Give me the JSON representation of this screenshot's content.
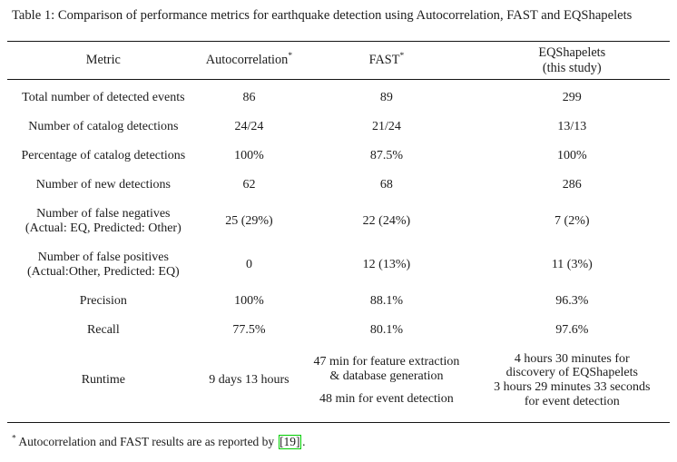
{
  "caption": "Table 1: Comparison of performance metrics for earthquake detection using Autocorrelation, FAST and EQShapelets",
  "table": {
    "header": {
      "metric": "Metric",
      "autocorrelation": "Autocorrelation",
      "autocorrelation_sup": "*",
      "fast": "FAST",
      "fast_sup": "*",
      "eqshapelets_line1": "EQShapelets",
      "eqshapelets_line2": "(this study)"
    },
    "rows": [
      {
        "cells": [
          [
            "Total number of detected events"
          ],
          [
            "86"
          ],
          [
            "89"
          ],
          [
            "299"
          ]
        ]
      },
      {
        "cells": [
          [
            "Number of catalog detections"
          ],
          [
            "24/24"
          ],
          [
            "21/24"
          ],
          [
            "13/13"
          ]
        ]
      },
      {
        "cells": [
          [
            "Percentage of catalog detections"
          ],
          [
            "100%"
          ],
          [
            "87.5%"
          ],
          [
            "100%"
          ]
        ]
      },
      {
        "cells": [
          [
            "Number of new detections"
          ],
          [
            "62"
          ],
          [
            "68"
          ],
          [
            "286"
          ]
        ]
      },
      {
        "cells": [
          [
            "Number of false negatives",
            "(Actual: EQ, Predicted: Other)"
          ],
          [
            "25 (29%)"
          ],
          [
            "22 (24%)"
          ],
          [
            "7 (2%)"
          ]
        ]
      },
      {
        "cells": [
          [
            "Number of false positives",
            "(Actual:Other, Predicted: EQ)"
          ],
          [
            "0"
          ],
          [
            "12 (13%)"
          ],
          [
            "11 (3%)"
          ]
        ]
      },
      {
        "cells": [
          [
            "Precision"
          ],
          [
            "100%"
          ],
          [
            "88.1%"
          ],
          [
            "96.3%"
          ]
        ]
      },
      {
        "cells": [
          [
            "Recall"
          ],
          [
            "77.5%"
          ],
          [
            "80.1%"
          ],
          [
            "97.6%"
          ]
        ]
      },
      {
        "cells": [
          [
            "Runtime"
          ],
          [
            "9 days 13 hours"
          ],
          [
            "47 min for feature extraction",
            "& database generation",
            "",
            "48 min for event detection"
          ],
          [
            "4 hours 30 minutes for",
            "discovery of EQShapelets",
            "3 hours 29 minutes 33 seconds",
            "for event detection"
          ]
        ]
      }
    ]
  },
  "footnote": {
    "marker": "*",
    "text_before": " Autocorrelation and FAST results are as reported by ",
    "citation": "[19]",
    "text_after": "."
  },
  "colors": {
    "citation_green": "#00cc00",
    "text": "#1c1c1c",
    "rule": "#151515"
  }
}
